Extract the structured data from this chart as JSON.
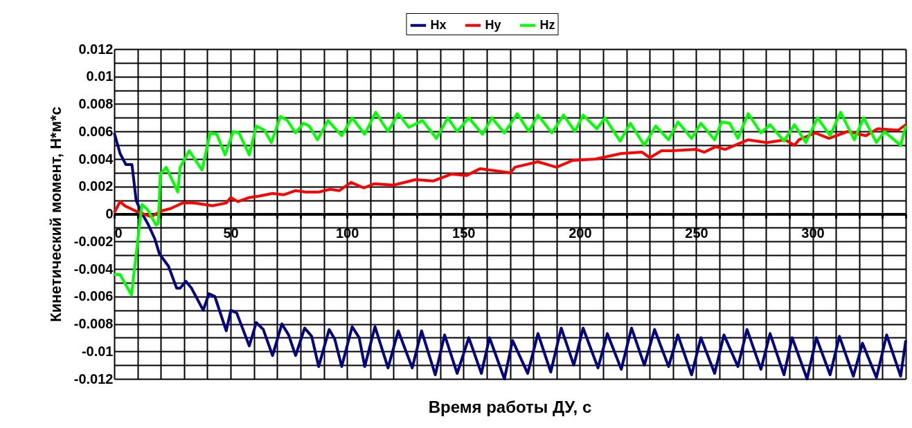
{
  "chart_data": {
    "type": "line",
    "xlabel": "Время работы ДУ, с",
    "ylabel": "Кинетический момент, Н*м*с",
    "xlim": [
      0,
      340
    ],
    "ylim": [
      -0.012,
      0.012
    ],
    "xticks": [
      0,
      {
        "value": 10,
        "label": null
      },
      {
        "value": 20,
        "label": null
      },
      {
        "value": 30,
        "label": null
      },
      {
        "value": 40,
        "label": null
      },
      50,
      {
        "value": 60,
        "label": null
      },
      {
        "value": 70,
        "label": null
      },
      {
        "value": 80,
        "label": null
      },
      {
        "value": 90,
        "label": null
      },
      100,
      {
        "value": 110,
        "label": null
      },
      {
        "value": 120,
        "label": null
      },
      {
        "value": 130,
        "label": null
      },
      {
        "value": 140,
        "label": null
      },
      150,
      {
        "value": 160,
        "label": null
      },
      {
        "value": 170,
        "label": null
      },
      {
        "value": 180,
        "label": null
      },
      {
        "value": 190,
        "label": null
      },
      200,
      {
        "value": 210,
        "label": null
      },
      {
        "value": 220,
        "label": null
      },
      {
        "value": 230,
        "label": null
      },
      {
        "value": 240,
        "label": null
      },
      250,
      {
        "value": 260,
        "label": null
      },
      {
        "value": 270,
        "label": null
      },
      {
        "value": 280,
        "label": null
      },
      {
        "value": 290,
        "label": null
      },
      300,
      {
        "value": 310,
        "label": null
      },
      {
        "value": 320,
        "label": null
      },
      {
        "value": 330,
        "label": null
      },
      {
        "value": 340,
        "label": null
      }
    ],
    "yticks": [
      -0.012,
      {
        "value": -0.011,
        "label": null
      },
      -0.01,
      {
        "value": -0.009,
        "label": null
      },
      -0.008,
      {
        "value": -0.007,
        "label": null
      },
      -0.006,
      {
        "value": -0.005,
        "label": null
      },
      -0.004,
      {
        "value": -0.003,
        "label": null
      },
      -0.002,
      {
        "value": -0.001,
        "label": null
      },
      0,
      {
        "value": 0.001,
        "label": null
      },
      0.002,
      {
        "value": 0.003,
        "label": null
      },
      0.004,
      {
        "value": 0.005,
        "label": null
      },
      0.006,
      {
        "value": 0.007,
        "label": null
      },
      0.008,
      {
        "value": 0.009,
        "label": null
      },
      0.01,
      {
        "value": 0.011,
        "label": null
      },
      0.012
    ],
    "grid": true,
    "legend": "top",
    "marker": "none",
    "line_style": "solid",
    "series": [
      {
        "name": "Hx",
        "color": "#000080",
        "x": [
          0,
          2.5,
          5,
          7.6,
          9.4,
          11.4,
          14.4,
          17.4,
          19.4,
          23.3,
          26.8,
          28.3,
          30.8,
          33.2,
          38.2,
          40.7,
          43.2,
          48.1,
          50.1,
          52.6,
          58,
          61,
          64,
          68,
          72,
          74.9,
          77.9,
          81.8,
          84.8,
          87.8,
          92.3,
          94.7,
          97.7,
          102.2,
          105.2,
          107.6,
          112,
          117.6,
          122,
          128,
          132,
          137.9,
          141.9,
          147.3,
          152.3,
          157.7,
          161.2,
          167.6,
          171.1,
          177.6,
          182,
          187.5,
          192,
          197.4,
          201.4,
          207.8,
          211.8,
          217.8,
          222.2,
          227.7,
          232.1,
          238.1,
          242.1,
          248,
          252,
          257.9,
          261.9,
          267.9,
          271.8,
          277.8,
          281.7,
          287.7,
          291.2,
          297.6,
          301.6,
          307.5,
          311.5,
          317.5,
          321.4,
          327.4,
          331.8,
          337.8,
          340
        ],
        "values": [
          0.0059,
          0.0044,
          0.0036,
          0.0036,
          0.001,
          0.0002,
          -0.0007,
          -0.0018,
          -0.0029,
          -0.0038,
          -0.0054,
          -0.0054,
          -0.0049,
          -0.0054,
          -0.007,
          -0.0058,
          -0.006,
          -0.0085,
          -0.007,
          -0.0072,
          -0.0096,
          -0.0079,
          -0.0084,
          -0.0103,
          -0.008,
          -0.0088,
          -0.0103,
          -0.0083,
          -0.0089,
          -0.0111,
          -0.0084,
          -0.0091,
          -0.0111,
          -0.0082,
          -0.009,
          -0.0111,
          -0.0082,
          -0.0112,
          -0.0085,
          -0.0112,
          -0.0085,
          -0.0117,
          -0.0088,
          -0.0116,
          -0.009,
          -0.0116,
          -0.009,
          -0.012,
          -0.0092,
          -0.0116,
          -0.0087,
          -0.0115,
          -0.0083,
          -0.011,
          -0.0083,
          -0.0112,
          -0.0087,
          -0.0113,
          -0.0083,
          -0.011,
          -0.0084,
          -0.0111,
          -0.0088,
          -0.0117,
          -0.009,
          -0.0116,
          -0.0088,
          -0.0111,
          -0.0084,
          -0.0113,
          -0.0087,
          -0.0117,
          -0.009,
          -0.012,
          -0.009,
          -0.0117,
          -0.0089,
          -0.0118,
          -0.0094,
          -0.0119,
          -0.0088,
          -0.0118,
          -0.0092
        ]
      },
      {
        "name": "Hy",
        "color": "#ff0000",
        "x": [
          0,
          2.5,
          4.5,
          9.4,
          15.9,
          19.8,
          24.3,
          29.3,
          34.2,
          42.2,
          48.1,
          50.1,
          53.1,
          58,
          62,
          68,
          72.9,
          77.9,
          82.3,
          87.8,
          92.8,
          96.7,
          101.7,
          107.2,
          111.6,
          120,
          129.5,
          136.9,
          144.8,
          151.3,
          157.2,
          170.1,
          172.1,
          182,
          190,
          196.9,
          206.8,
          217.8,
          226.7,
          230.1,
          235.1,
          239.6,
          250,
          253.5,
          258.4,
          262.4,
          272.3,
          280.3,
          288.2,
          292.2,
          294.1,
          301.1,
          307,
          315,
          322.9,
          327.9,
          336.8,
          340
        ],
        "values": [
          0.0001,
          0.0009,
          0.0006,
          0.0002,
          -0.0002,
          0.0002,
          0.0004,
          0.0008,
          0.0008,
          0.0006,
          0.0008,
          0.0012,
          0.0009,
          0.0012,
          0.0013,
          0.0015,
          0.0014,
          0.0017,
          0.0016,
          0.0016,
          0.0018,
          0.0017,
          0.0023,
          0.0019,
          0.0022,
          0.0021,
          0.0025,
          0.0024,
          0.0029,
          0.0028,
          0.0033,
          0.003,
          0.0034,
          0.0038,
          0.0034,
          0.0039,
          0.004,
          0.0044,
          0.0045,
          0.0041,
          0.0046,
          0.0046,
          0.0047,
          0.0045,
          0.0049,
          0.0047,
          0.0054,
          0.0052,
          0.0054,
          0.005,
          0.0054,
          0.0059,
          0.0055,
          0.006,
          0.0057,
          0.0062,
          0.0061,
          0.0065
        ]
      },
      {
        "name": "Hz",
        "color": "#00ff00",
        "x": [
          0,
          2.5,
          7.4,
          11.9,
          14.4,
          17.9,
          18.9,
          19.8,
          22.3,
          27.3,
          28.3,
          32.2,
          37.7,
          41.2,
          44.1,
          47.6,
          51.1,
          53.6,
          58,
          61,
          64.5,
          67.5,
          71.4,
          74.4,
          77.9,
          81.3,
          83.8,
          87.3,
          91.8,
          97.7,
          102.2,
          107.6,
          112.3,
          117.6,
          122,
          126.5,
          132.4,
          138.4,
          143.3,
          147.3,
          152.3,
          158.2,
          162.2,
          167.6,
          173.1,
          178.1,
          182,
          188,
          193,
          197.9,
          201.4,
          207.3,
          210.8,
          217.3,
          221.7,
          227.7,
          232.6,
          238.1,
          242.1,
          248,
          252,
          257.9,
          260.9,
          264.4,
          267.9,
          272.3,
          277.8,
          281.7,
          287.7,
          292.2,
          297.1,
          302.1,
          307.5,
          312,
          317.9,
          321.9,
          327.4,
          330.8,
          337.8,
          340
        ],
        "values": [
          -0.0044,
          -0.0044,
          -0.0059,
          0.0007,
          0.0003,
          -0.0008,
          -0.0007,
          0.0029,
          0.0034,
          0.0016,
          0.0034,
          0.0046,
          0.0032,
          0.0059,
          0.0058,
          0.0043,
          0.006,
          0.0059,
          0.0043,
          0.0064,
          0.0061,
          0.0052,
          0.0071,
          0.0068,
          0.0059,
          0.0066,
          0.0064,
          0.0054,
          0.0068,
          0.0057,
          0.007,
          0.0058,
          0.0074,
          0.006,
          0.0073,
          0.0063,
          0.0068,
          0.0055,
          0.007,
          0.006,
          0.007,
          0.0058,
          0.007,
          0.0059,
          0.0073,
          0.006,
          0.0072,
          0.0059,
          0.0072,
          0.006,
          0.0072,
          0.0062,
          0.007,
          0.0053,
          0.0066,
          0.005,
          0.0064,
          0.0054,
          0.0067,
          0.0055,
          0.0066,
          0.0054,
          0.0067,
          0.0066,
          0.0055,
          0.0073,
          0.0059,
          0.0065,
          0.0053,
          0.0065,
          0.0052,
          0.007,
          0.0057,
          0.0074,
          0.0054,
          0.007,
          0.0052,
          0.006,
          0.005,
          0.0064
        ]
      }
    ]
  }
}
